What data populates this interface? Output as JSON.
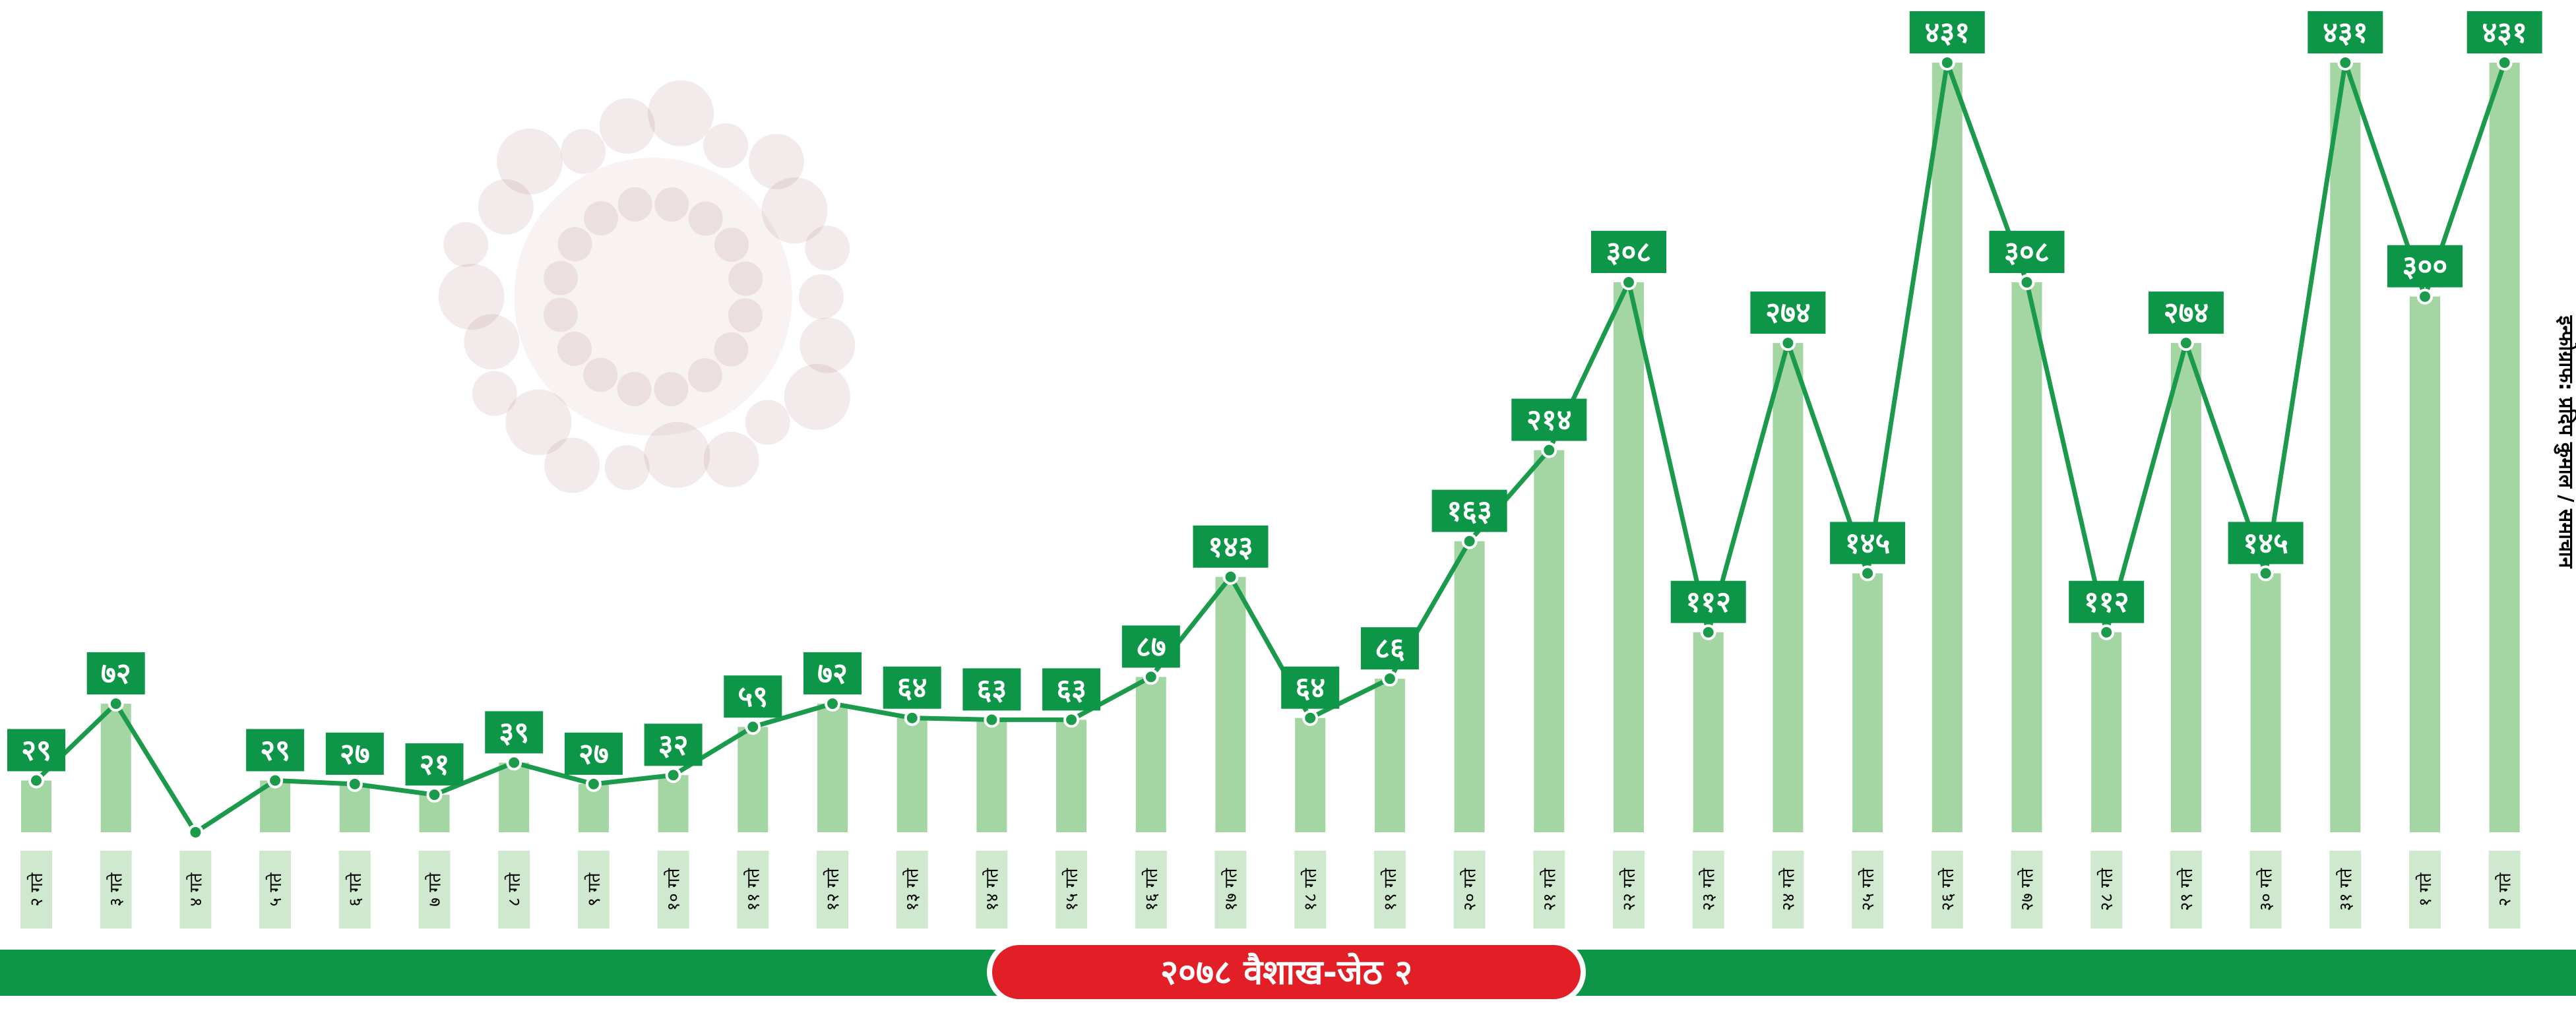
{
  "chart_data": {
    "type": "bar",
    "title": "२०७८ वैशाख-जेठ २",
    "credit": "इन्फोग्राफ: प्रदिप कुमाल / समाचान",
    "categories": [
      "२ गते",
      "३ गते",
      "४ गते",
      "५ गते",
      "६ गते",
      "७ गते",
      "८ गते",
      "९ गते",
      "१० गते",
      "११ गते",
      "१२ गते",
      "१३ गते",
      "१४ गते",
      "१५ गते",
      "१६ गते",
      "१७ गते",
      "१८ गते",
      "१९ गते",
      "२० गते",
      "२१ गते",
      "२२ गते",
      "२३ गते",
      "२४ गते",
      "२५ गते",
      "२६ गते",
      "२७ गते",
      "२८ गते",
      "२९ गते",
      "३० गते",
      "३१ गते",
      "१ गते",
      "२ गते"
    ],
    "values": [
      29,
      72,
      0,
      29,
      27,
      21,
      39,
      27,
      32,
      59,
      72,
      64,
      63,
      63,
      87,
      143,
      64,
      86,
      163,
      214,
      308,
      112,
      274,
      145,
      431,
      308,
      112,
      274,
      145,
      431,
      300,
      431
    ],
    "value_labels": [
      "२९",
      "७२",
      "",
      "२९",
      "२७",
      "२१",
      "३९",
      "२७",
      "३२",
      "५९",
      "७२",
      "६४",
      "६३",
      "६३",
      "८७",
      "१४३",
      "६४",
      "८६",
      "१६३",
      "२१४",
      "३०८",
      "११२",
      "२७४",
      "१४५",
      "४३१",
      "३०८",
      "११२",
      "२७४",
      "१४५",
      "४३१",
      "३००",
      "४३१"
    ],
    "ylim": [
      0,
      431
    ],
    "grid": false,
    "colors": {
      "bar": "#a3d6a3",
      "line": "#1a9a4a",
      "label_box": "#0e9648",
      "title_bar": "#0e9648",
      "title_pill": "#e21e26",
      "tick_box": "#cfe9cf"
    }
  }
}
